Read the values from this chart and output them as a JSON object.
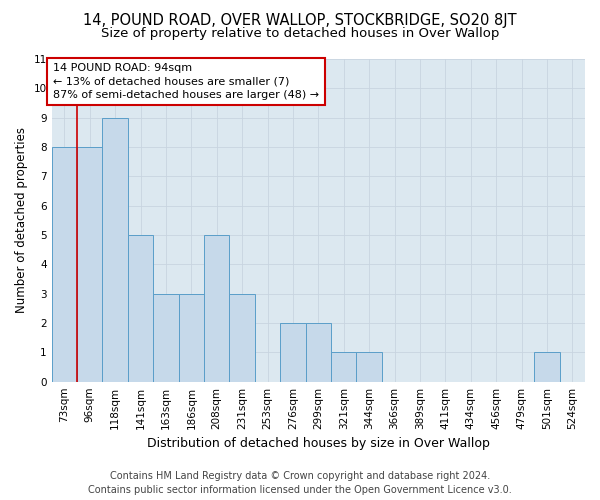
{
  "title": "14, POUND ROAD, OVER WALLOP, STOCKBRIDGE, SO20 8JT",
  "subtitle": "Size of property relative to detached houses in Over Wallop",
  "xlabel": "Distribution of detached houses by size in Over Wallop",
  "ylabel": "Number of detached properties",
  "footer_line1": "Contains HM Land Registry data © Crown copyright and database right 2024.",
  "footer_line2": "Contains public sector information licensed under the Open Government Licence v3.0.",
  "categories": [
    "73sqm",
    "96sqm",
    "118sqm",
    "141sqm",
    "163sqm",
    "186sqm",
    "208sqm",
    "231sqm",
    "253sqm",
    "276sqm",
    "299sqm",
    "321sqm",
    "344sqm",
    "366sqm",
    "389sqm",
    "411sqm",
    "434sqm",
    "456sqm",
    "479sqm",
    "501sqm",
    "524sqm"
  ],
  "values": [
    8,
    8,
    9,
    5,
    3,
    3,
    5,
    3,
    0,
    2,
    2,
    1,
    1,
    0,
    0,
    0,
    0,
    0,
    0,
    1,
    0
  ],
  "bar_color": "#c6d9ea",
  "bar_edge_color": "#5a9ec9",
  "highlight_bar_index": 1,
  "highlight_line_color": "#cc0000",
  "annotation_line1": "14 POUND ROAD: 94sqm",
  "annotation_line2": "← 13% of detached houses are smaller (7)",
  "annotation_line3": "87% of semi-detached houses are larger (48) →",
  "annotation_box_color": "white",
  "annotation_box_edge_color": "#cc0000",
  "ylim": [
    0,
    11
  ],
  "yticks": [
    0,
    1,
    2,
    3,
    4,
    5,
    6,
    7,
    8,
    9,
    10,
    11
  ],
  "grid_color": "#c8d4e0",
  "background_color": "#dce8f0",
  "title_fontsize": 10.5,
  "subtitle_fontsize": 9.5,
  "ylabel_fontsize": 8.5,
  "xlabel_fontsize": 9,
  "tick_fontsize": 7.5,
  "annotation_fontsize": 8,
  "footer_fontsize": 7
}
